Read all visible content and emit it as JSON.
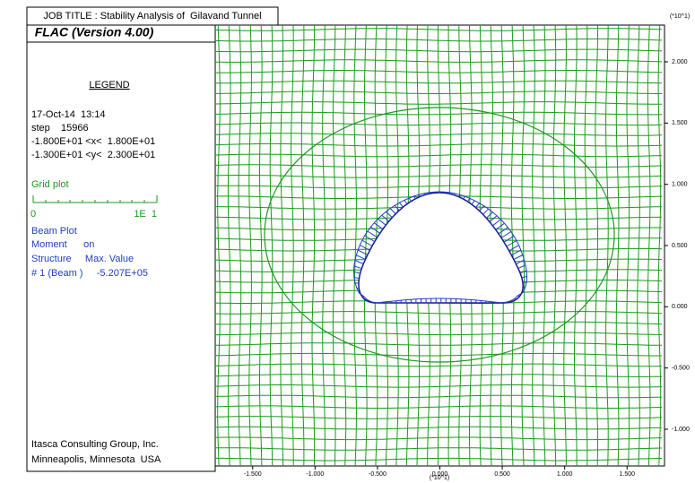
{
  "header": {
    "job_title": "JOB TITLE : Stability Analysis of  Gilavand Tunnel"
  },
  "legend": {
    "program": "FLAC (Version 4.00)",
    "heading": "LEGEND",
    "date": "17-Oct-14  13:14",
    "step": "step    15966",
    "x_range": "-1.800E+01 <x<  1.800E+01",
    "y_range": "-1.300E+01 <y<  2.300E+01",
    "grid_plot": "Grid plot",
    "scale_min": "0",
    "scale_max": "1E  1",
    "beam_lines": [
      "Beam Plot",
      "Moment      on",
      "Structure     Max. Value",
      "# 1 (Beam )     -5.207E+05"
    ],
    "footer": [
      "Itasca Consulting Group, Inc.",
      "Minneapolis, Minnesota  USA"
    ]
  },
  "plot": {
    "xlim": [
      -1.8,
      1.8
    ],
    "ylim": [
      -1.3,
      2.3
    ],
    "x_multiplier": "(*10^1)",
    "y_multiplier": "(*10^1)",
    "xticks": [
      {
        "value": -1.5,
        "label": "-1.500"
      },
      {
        "value": -1.0,
        "label": "-1.000"
      },
      {
        "value": -0.5,
        "label": "-0.500"
      },
      {
        "value": 0,
        "label": "0.000"
      },
      {
        "value": 0.5,
        "label": "0.500"
      },
      {
        "value": 1.0,
        "label": "1.000"
      },
      {
        "value": 1.5,
        "label": "1.500"
      }
    ],
    "yticks": [
      {
        "value": -1.0,
        "label": "-1.000"
      },
      {
        "value": -0.5,
        "label": "-0.500"
      },
      {
        "value": 0,
        "label": "0.000"
      },
      {
        "value": 0.5,
        "label": "0.500"
      },
      {
        "value": 1.0,
        "label": "1.000"
      },
      {
        "value": 1.5,
        "label": "1.500"
      },
      {
        "value": 2.0,
        "label": "2.000"
      }
    ]
  }
}
